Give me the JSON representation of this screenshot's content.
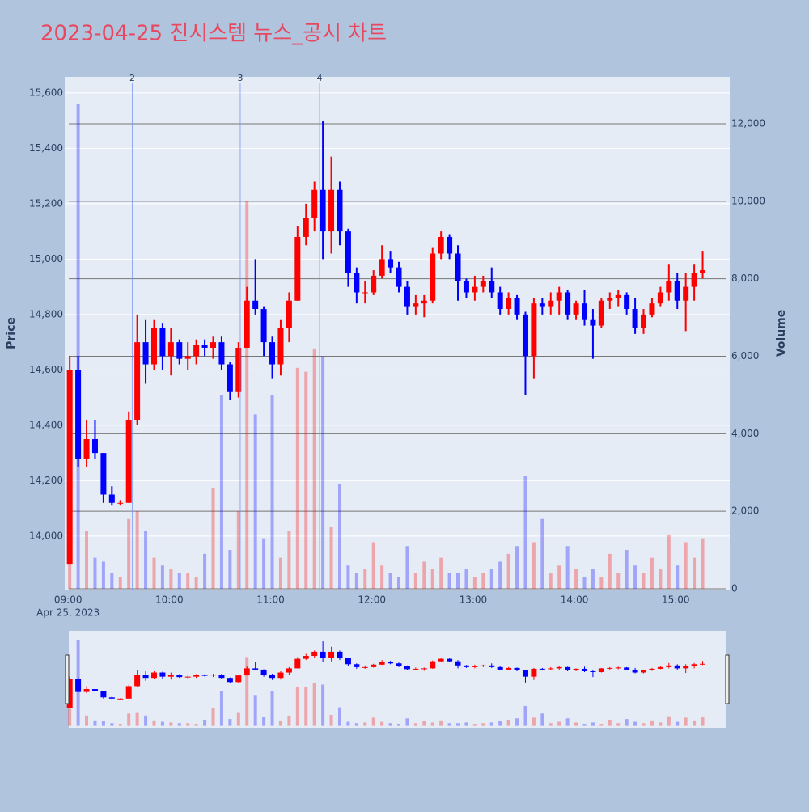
{
  "chart_data": {
    "type": "candlestick",
    "title": "2023-04-25 진시스템 뉴스_공시 차트",
    "y_label": "Price",
    "y2_label": "Volume",
    "x": [
      "09:00",
      "09:05",
      "09:10",
      "09:15",
      "09:20",
      "09:25",
      "09:30",
      "09:35",
      "09:40",
      "09:45",
      "09:50",
      "09:55",
      "10:00",
      "10:05",
      "10:10",
      "10:15",
      "10:20",
      "10:25",
      "10:30",
      "10:35",
      "10:40",
      "10:45",
      "10:50",
      "10:55",
      "11:00",
      "11:05",
      "11:10",
      "11:15",
      "11:20",
      "11:25",
      "11:30",
      "11:35",
      "11:40",
      "11:45",
      "11:50",
      "11:55",
      "12:00",
      "12:05",
      "12:10",
      "12:15",
      "12:20",
      "12:25",
      "12:30",
      "12:35",
      "12:40",
      "12:45",
      "12:50",
      "12:55",
      "13:00",
      "13:05",
      "13:10",
      "13:15",
      "13:20",
      "13:25",
      "13:30",
      "13:35",
      "13:40",
      "13:45",
      "13:50",
      "13:55",
      "14:00",
      "14:05",
      "14:10",
      "14:15",
      "14:20",
      "14:25",
      "14:30",
      "14:35",
      "14:40",
      "14:45",
      "14:50",
      "14:55",
      "15:00",
      "15:05",
      "15:10",
      "15:15"
    ],
    "open": [
      13900,
      14600,
      14280,
      14350,
      14300,
      14150,
      14120,
      14120,
      14420,
      14700,
      14620,
      14750,
      14650,
      14700,
      14640,
      14650,
      14690,
      14680,
      14700,
      14620,
      14520,
      14680,
      14850,
      14820,
      14700,
      14620,
      14750,
      14850,
      15080,
      15150,
      15250,
      15100,
      15250,
      15100,
      14950,
      14880,
      14880,
      14940,
      15000,
      14970,
      14900,
      14830,
      14840,
      14850,
      15020,
      15080,
      15020,
      14920,
      14880,
      14900,
      14920,
      14880,
      14820,
      14860,
      14800,
      14650,
      14840,
      14830,
      14850,
      14880,
      14800,
      14840,
      14780,
      14760,
      14850,
      14860,
      14870,
      14820,
      14750,
      14800,
      14840,
      14880,
      14920,
      14850,
      14900,
      14950
    ],
    "high": [
      14650,
      14650,
      14420,
      14420,
      14300,
      14180,
      14130,
      14450,
      14800,
      14780,
      14780,
      14770,
      14750,
      14710,
      14700,
      14710,
      14710,
      14720,
      14720,
      14630,
      14700,
      14900,
      15000,
      14830,
      14720,
      14780,
      14880,
      15120,
      15200,
      15280,
      15500,
      15370,
      15280,
      15110,
      14970,
      14920,
      14960,
      15050,
      15030,
      14990,
      14920,
      14870,
      14870,
      15040,
      15100,
      15090,
      15050,
      14930,
      14940,
      14940,
      14970,
      14900,
      14880,
      14870,
      14810,
      14860,
      14860,
      14880,
      14900,
      14890,
      14850,
      14890,
      14820,
      14860,
      14880,
      14890,
      14880,
      14860,
      14820,
      14860,
      14900,
      14980,
      14950,
      14950,
      14980,
      15030
    ],
    "low": [
      13900,
      14250,
      14250,
      14280,
      14120,
      14110,
      14110,
      14120,
      14400,
      14550,
      14600,
      14600,
      14580,
      14620,
      14600,
      14620,
      14650,
      14640,
      14600,
      14490,
      14500,
      14680,
      14800,
      14650,
      14570,
      14580,
      14700,
      14850,
      15050,
      15100,
      15000,
      15020,
      15050,
      14900,
      14840,
      14840,
      14870,
      14930,
      14950,
      14880,
      14800,
      14800,
      14790,
      14840,
      15000,
      15000,
      14850,
      14860,
      14850,
      14880,
      14860,
      14800,
      14800,
      14780,
      14510,
      14570,
      14800,
      14800,
      14800,
      14780,
      14780,
      14760,
      14640,
      14750,
      14820,
      14830,
      14800,
      14730,
      14730,
      14790,
      14830,
      14850,
      14820,
      14740,
      14850,
      14930
    ],
    "close": [
      14600,
      14280,
      14350,
      14300,
      14150,
      14120,
      14120,
      14420,
      14700,
      14620,
      14750,
      14650,
      14700,
      14640,
      14650,
      14690,
      14680,
      14700,
      14620,
      14520,
      14680,
      14850,
      14820,
      14700,
      14620,
      14750,
      14850,
      15080,
      15150,
      15250,
      15100,
      15250,
      15100,
      14950,
      14880,
      14880,
      14940,
      15000,
      14970,
      14900,
      14830,
      14840,
      14850,
      15020,
      15080,
      15020,
      14920,
      14880,
      14900,
      14920,
      14880,
      14820,
      14860,
      14800,
      14650,
      14840,
      14830,
      14850,
      14880,
      14800,
      14840,
      14780,
      14760,
      14850,
      14860,
      14870,
      14820,
      14750,
      14800,
      14840,
      14880,
      14920,
      14850,
      14900,
      14950,
      14960
    ],
    "volume": [
      2500,
      12500,
      1500,
      800,
      700,
      400,
      300,
      1800,
      2000,
      1500,
      800,
      600,
      500,
      400,
      400,
      300,
      900,
      2600,
      5000,
      1000,
      2000,
      10000,
      4500,
      1300,
      5000,
      800,
      1500,
      5700,
      5600,
      6200,
      6000,
      1600,
      2700,
      600,
      400,
      500,
      1200,
      600,
      400,
      300,
      1100,
      400,
      700,
      500,
      800,
      400,
      400,
      500,
      300,
      400,
      500,
      700,
      900,
      1100,
      2900,
      1200,
      1800,
      400,
      600,
      1100,
      500,
      300,
      500,
      300,
      900,
      400,
      1000,
      600,
      400,
      800,
      500,
      1400,
      600,
      1200,
      800,
      1300
    ],
    "up_color": "#ff0000",
    "down_color": "#0000ff",
    "xlim": [
      "08:58",
      "15:32"
    ],
    "xticks": [
      "09:00",
      "10:00",
      "11:00",
      "12:00",
      "13:00",
      "14:00",
      "15:00"
    ],
    "xtick_date": "Apr 25, 2023",
    "ylim": [
      13804,
      15658
    ],
    "yticks": [
      {
        "value": 14000,
        "label": "14,000"
      },
      {
        "value": 14200,
        "label": "14,200"
      },
      {
        "value": 14400,
        "label": "14,400"
      },
      {
        "value": 14600,
        "label": "14,600"
      },
      {
        "value": 14800,
        "label": "14,800"
      },
      {
        "value": 15000,
        "label": "15,000"
      },
      {
        "value": 15200,
        "label": "15,200"
      },
      {
        "value": 15400,
        "label": "15,400"
      },
      {
        "value": 15600,
        "label": "15,600"
      }
    ],
    "y2lim": [
      -42,
      13210
    ],
    "y2ticks": [
      0,
      {
        "value": 2000,
        "label": "2,000"
      },
      {
        "value": 4000,
        "label": "4,000"
      },
      {
        "value": 6000,
        "label": "6,000"
      },
      {
        "value": 8000,
        "label": "8,000"
      },
      {
        "value": 10000,
        "label": "10,000"
      },
      {
        "value": 12000,
        "label": "12,000"
      }
    ],
    "annotations": [
      {
        "x": "09:38",
        "text": "2"
      },
      {
        "x": "10:42",
        "text": "3"
      },
      {
        "x": "11:29",
        "text": "4"
      }
    ],
    "grid": true,
    "range_slider": true
  }
}
